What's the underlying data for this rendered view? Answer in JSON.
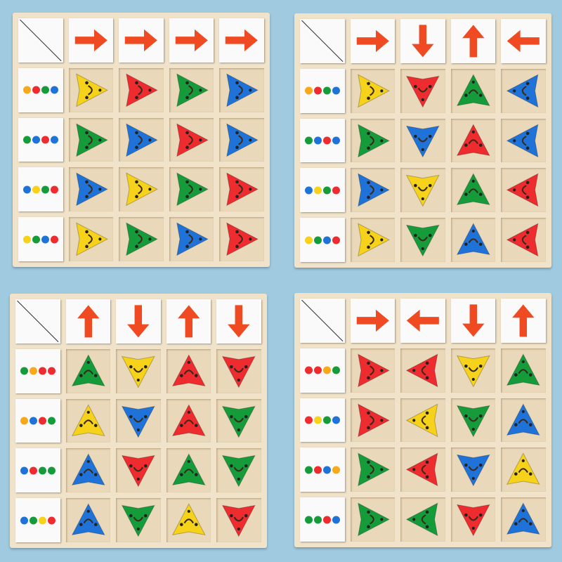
{
  "colors": {
    "red": "#ee2b2f",
    "blue": "#1f73d8",
    "green": "#159b3a",
    "yellow": "#f7d21a",
    "orange": "#f7a81b",
    "arrow": "#f04a22",
    "background": "#9fcadf"
  },
  "boards": [
    {
      "arrows": [
        "right",
        "right",
        "right",
        "right"
      ],
      "dots": [
        [
          "orange",
          "red",
          "green",
          "blue"
        ],
        [
          "green",
          "blue",
          "red",
          "blue"
        ],
        [
          "blue",
          "yellow",
          "green",
          "red"
        ],
        [
          "yellow",
          "green",
          "blue",
          "red"
        ]
      ],
      "pieces": [
        [
          "yellow",
          "red",
          "green",
          "blue"
        ],
        [
          "green",
          "blue",
          "red",
          "blue"
        ],
        [
          "blue",
          "yellow",
          "green",
          "red"
        ],
        [
          "yellow",
          "green",
          "blue",
          "red"
        ]
      ]
    },
    {
      "arrows": [
        "right",
        "down",
        "up",
        "left"
      ],
      "dots": [
        [
          "orange",
          "red",
          "green",
          "blue"
        ],
        [
          "green",
          "blue",
          "red",
          "blue"
        ],
        [
          "blue",
          "yellow",
          "green",
          "red"
        ],
        [
          "yellow",
          "green",
          "blue",
          "red"
        ]
      ],
      "pieces": [
        [
          "yellow",
          "red",
          "green",
          "blue"
        ],
        [
          "green",
          "blue",
          "red",
          "blue"
        ],
        [
          "blue",
          "yellow",
          "green",
          "red"
        ],
        [
          "yellow",
          "green",
          "blue",
          "red"
        ]
      ]
    },
    {
      "arrows": [
        "up",
        "down",
        "up",
        "down"
      ],
      "dots": [
        [
          "green",
          "orange",
          "red",
          "red"
        ],
        [
          "orange",
          "blue",
          "red",
          "green"
        ],
        [
          "blue",
          "red",
          "green",
          "green"
        ],
        [
          "blue",
          "green",
          "yellow",
          "red"
        ]
      ],
      "pieces": [
        [
          "green",
          "yellow",
          "red",
          "red"
        ],
        [
          "yellow",
          "blue",
          "red",
          "green"
        ],
        [
          "blue",
          "red",
          "green",
          "green"
        ],
        [
          "blue",
          "green",
          "yellow",
          "red"
        ]
      ]
    },
    {
      "arrows": [
        "right",
        "left",
        "down",
        "up"
      ],
      "dots": [
        [
          "red",
          "red",
          "orange",
          "green"
        ],
        [
          "red",
          "yellow",
          "green",
          "blue"
        ],
        [
          "green",
          "red",
          "blue",
          "orange"
        ],
        [
          "green",
          "green",
          "red",
          "blue"
        ]
      ],
      "pieces": [
        [
          "red",
          "red",
          "yellow",
          "green"
        ],
        [
          "red",
          "yellow",
          "green",
          "blue"
        ],
        [
          "green",
          "red",
          "blue",
          "yellow"
        ],
        [
          "green",
          "green",
          "red",
          "blue"
        ]
      ]
    }
  ]
}
